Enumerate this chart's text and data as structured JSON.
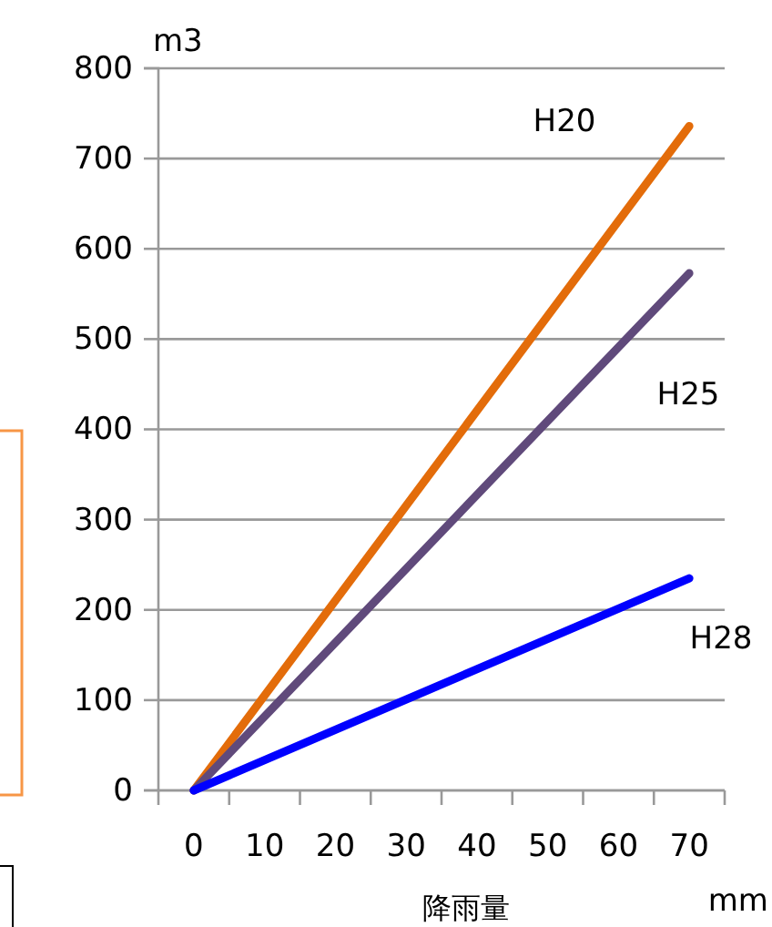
{
  "chart_data": {
    "type": "line",
    "ylabel": "m3",
    "xlabel": "降雨量",
    "annotations": [
      "mm"
    ],
    "x": [
      0,
      70
    ],
    "xlim": [
      -5,
      75
    ],
    "xticks": [
      {
        "value": -5,
        "label": null
      },
      {
        "value": 0,
        "label": "0"
      },
      {
        "value": 5,
        "label": null
      },
      {
        "value": 10,
        "label": "10"
      },
      {
        "value": 15,
        "label": null
      },
      {
        "value": 20,
        "label": "20"
      },
      {
        "value": 25,
        "label": null
      },
      {
        "value": 30,
        "label": "30"
      },
      {
        "value": 35,
        "label": null
      },
      {
        "value": 40,
        "label": "40"
      },
      {
        "value": 45,
        "label": null
      },
      {
        "value": 50,
        "label": "50"
      },
      {
        "value": 55,
        "label": null
      },
      {
        "value": 60,
        "label": "60"
      },
      {
        "value": 65,
        "label": null
      },
      {
        "value": 70,
        "label": "70"
      },
      {
        "value": 75,
        "label": null
      }
    ],
    "ylim": [
      0,
      800
    ],
    "yticks": [
      0,
      100,
      200,
      300,
      400,
      500,
      600,
      700,
      800
    ],
    "grid": "y",
    "marker": "none",
    "line_style": "solid",
    "legend": false,
    "series": [
      {
        "name": "H20",
        "color": "#e36c0a",
        "values": [
          0,
          736
        ]
      },
      {
        "name": "H25",
        "color": "#604a7b",
        "values": [
          0,
          573
        ]
      },
      {
        "name": "H28",
        "color": "#0000ff",
        "values": [
          0,
          235
        ]
      }
    ]
  }
}
